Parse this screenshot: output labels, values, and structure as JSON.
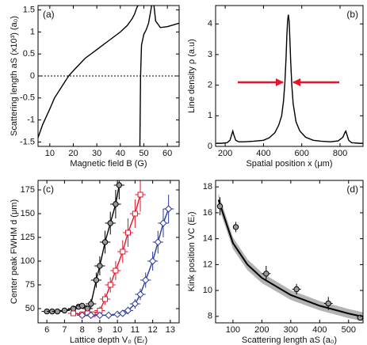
{
  "chart_data": [
    {
      "type": "line",
      "label": "(a)",
      "xlabel": "Magnetic field B (G)",
      "ylabel": "Scattering length aS (x10³) (a₀)",
      "xlim": [
        5,
        65
      ],
      "xticks": [
        10,
        20,
        30,
        40,
        50,
        60
      ],
      "ylim": [
        -1.6,
        1.6
      ],
      "yticks": [
        -1.5,
        -1,
        -0.5,
        0,
        0.5,
        1,
        1.5
      ],
      "hline": 0,
      "x": [
        5,
        7,
        10,
        12,
        15,
        18,
        20,
        25,
        30,
        35,
        40,
        43,
        45,
        46,
        47,
        47.5,
        47.9,
        48.3,
        48.6,
        49,
        50,
        51,
        52,
        53,
        53.3,
        53.8,
        54.3,
        55,
        57,
        60,
        65
      ],
      "series": [
        {
          "color": "#000000",
          "values": [
            -1.4,
            -1.1,
            -0.75,
            -0.5,
            -0.25,
            0,
            0.12,
            0.4,
            0.6,
            0.8,
            1.0,
            1.15,
            1.3,
            1.4,
            1.55,
            1.6,
            null,
            -1.6,
            0,
            0.7,
            0.95,
            1.05,
            1.2,
            1.5,
            1.6,
            null,
            1.6,
            1.25,
            1.1,
            1.12,
            1.2
          ]
        }
      ]
    },
    {
      "type": "line",
      "label": "(b)",
      "xlabel": "Spatial position x (μm)",
      "ylabel": "Line density ρ (a.u)",
      "xlim": [
        150,
        920
      ],
      "xticks": [
        200,
        400,
        600,
        800
      ],
      "ylim": [
        0,
        4.6
      ],
      "yticks": [
        0,
        1,
        2,
        3,
        4
      ],
      "x": [
        150,
        180,
        210,
        225,
        235,
        240,
        245,
        255,
        270,
        300,
        350,
        400,
        430,
        460,
        480,
        495,
        505,
        512,
        518,
        522,
        526,
        530,
        534,
        538,
        542,
        548,
        555,
        570,
        590,
        620,
        660,
        700,
        750,
        790,
        815,
        825,
        830,
        835,
        845,
        860,
        900,
        920
      ],
      "series": [
        {
          "color": "#000000",
          "values": [
            0.1,
            0.1,
            0.12,
            0.2,
            0.4,
            0.5,
            0.38,
            0.2,
            0.15,
            0.15,
            0.17,
            0.2,
            0.28,
            0.45,
            0.7,
            1.0,
            1.5,
            2.1,
            2.9,
            3.6,
            4.1,
            4.3,
            4.1,
            3.5,
            2.8,
            2.0,
            1.4,
            0.8,
            0.5,
            0.3,
            0.2,
            0.17,
            0.15,
            0.18,
            0.3,
            0.45,
            0.5,
            0.4,
            0.2,
            0.12,
            0.1,
            0.1
          ]
        }
      ]
    },
    {
      "type": "scatter",
      "label": "(c)",
      "xlabel": "Lattice depth V₀ (Eᵣ)",
      "ylabel": "Center peak FWHM d (μm)",
      "xlim": [
        5.5,
        13.5
      ],
      "xticks": [
        6,
        7,
        8,
        9,
        10,
        11,
        12,
        13
      ],
      "ylim": [
        35,
        185
      ],
      "yticks": [
        50,
        75,
        100,
        125,
        150,
        175
      ],
      "series": [
        {
          "color": "#000000",
          "marker": "circle",
          "fill": "#999999",
          "connect": true,
          "x": [
            6,
            6.3,
            6.6,
            7,
            7.5,
            7.8,
            8,
            8.3,
            8.5,
            8.8,
            9,
            9.3,
            9.6,
            9.9,
            10.1
          ],
          "values": [
            47,
            47,
            47,
            48,
            50,
            52,
            53,
            50,
            55,
            80,
            95,
            120,
            140,
            160,
            180
          ],
          "yerr": [
            2,
            2,
            2,
            2,
            3,
            3,
            3,
            3,
            5,
            8,
            10,
            12,
            12,
            15,
            15
          ],
          "xerr": [
            0.3,
            0.3,
            0.3,
            0.3,
            0.3,
            0.3,
            0.3,
            0.3,
            0.3,
            0.3,
            0.3,
            0.3,
            0.3,
            0.3,
            0.3
          ]
        },
        {
          "color": "#e3162b",
          "marker": "square",
          "fill": "#ffffff",
          "connect": true,
          "x": [
            7.5,
            8,
            8.3,
            8.6,
            9,
            9.3,
            9.6,
            9.9,
            10.3,
            10.6,
            11,
            11.3
          ],
          "values": [
            45,
            44,
            45,
            44,
            48,
            60,
            75,
            90,
            110,
            130,
            150,
            170
          ],
          "yerr": [
            2,
            2,
            2,
            2,
            4,
            6,
            8,
            10,
            12,
            15,
            15,
            18
          ],
          "xerr": [
            0.3,
            0.3,
            0.3,
            0.3,
            0.3,
            0.3,
            0.3,
            0.3,
            0.3,
            0.3,
            0.3,
            0.3
          ]
        },
        {
          "color": "#2b3a9c",
          "marker": "diamond",
          "fill": "#ffffff",
          "connect": true,
          "x": [
            8,
            8.5,
            9,
            9.5,
            10,
            10.3,
            10.6,
            11,
            11.3,
            11.6,
            12,
            12.3,
            12.6,
            12.9
          ],
          "values": [
            43,
            43,
            43,
            43,
            44,
            45,
            48,
            55,
            65,
            80,
            100,
            120,
            140,
            155
          ],
          "yerr": [
            2,
            2,
            2,
            2,
            2,
            3,
            4,
            5,
            6,
            8,
            10,
            12,
            15,
            15
          ],
          "xerr": [
            0.3,
            0.3,
            0.3,
            0.3,
            0.3,
            0.3,
            0.3,
            0.3,
            0.3,
            0.3,
            0.3,
            0.3,
            0.3,
            0.3
          ]
        }
      ]
    },
    {
      "type": "scatter",
      "label": "(d)",
      "xlabel": "Scattering length aS (a₀)",
      "ylabel": "Kink position VC (Eᵣ)",
      "xlim": [
        40,
        550
      ],
      "xticks": [
        100,
        200,
        300,
        400,
        500
      ],
      "ylim": [
        7.5,
        18.5
      ],
      "yticks": [
        8,
        10,
        12,
        14,
        16,
        18
      ],
      "fit": {
        "color": "#000000",
        "band_color": "#b3b3b3",
        "x": [
          50,
          100,
          150,
          200,
          300,
          400,
          500,
          550
        ],
        "values": [
          17.0,
          13.66,
          12.0,
          10.97,
          9.65,
          8.82,
          8.22,
          7.97
        ],
        "errors": [
          0.5,
          0.45,
          0.42,
          0.4,
          0.38,
          0.36,
          0.35,
          0.35
        ]
      },
      "series": [
        {
          "color": "#000000",
          "marker": "circle",
          "fill": "#999999",
          "connect": false,
          "x": [
            55,
            110,
            215,
            320,
            430,
            540
          ],
          "values": [
            16.5,
            14.9,
            11.3,
            10.1,
            9.0,
            7.9
          ],
          "yerr": [
            0.7,
            0.4,
            0.6,
            0.4,
            0.5,
            0.2
          ],
          "xerr": [
            10,
            10,
            15,
            15,
            15,
            10
          ]
        }
      ]
    }
  ]
}
